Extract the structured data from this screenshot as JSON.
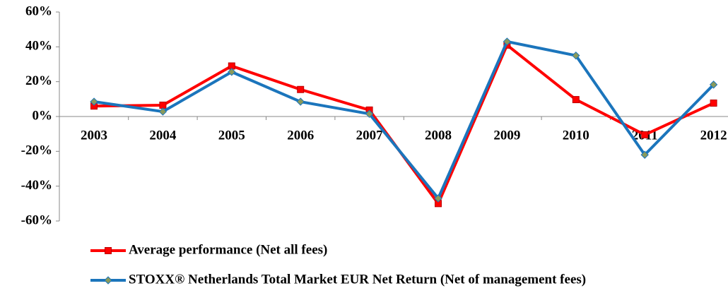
{
  "chart_data": {
    "type": "line",
    "categories": [
      "2003",
      "2004",
      "2005",
      "2006",
      "2007",
      "2008",
      "2009",
      "2010",
      "2011",
      "2012"
    ],
    "series": [
      {
        "name": "Average performance (Net all fees)",
        "color": "#ff0000",
        "marker": "square",
        "values": [
          6,
          6.5,
          29,
          15.5,
          3.7,
          -50,
          41,
          9.7,
          -10.5,
          7.7
        ]
      },
      {
        "name": "STOXX® Netherlands Total Market EUR Net Return (Net of management fees)",
        "color": "#1b75bc",
        "marker": "diamond",
        "values": [
          8.5,
          2.8,
          25.6,
          8.5,
          1.5,
          -47,
          43,
          35,
          -22,
          18.3
        ]
      }
    ],
    "ylim": [
      -60,
      60
    ],
    "yticks": [
      {
        "value": -60,
        "label": "-60%"
      },
      {
        "value": -40,
        "label": "-40%"
      },
      {
        "value": -20,
        "label": "-20%"
      },
      {
        "value": 0,
        "label": "0%"
      },
      {
        "value": 20,
        "label": "20%"
      },
      {
        "value": 40,
        "label": "40%"
      },
      {
        "value": 60,
        "label": "60%"
      }
    ],
    "grid": false,
    "legend": "bottom"
  }
}
